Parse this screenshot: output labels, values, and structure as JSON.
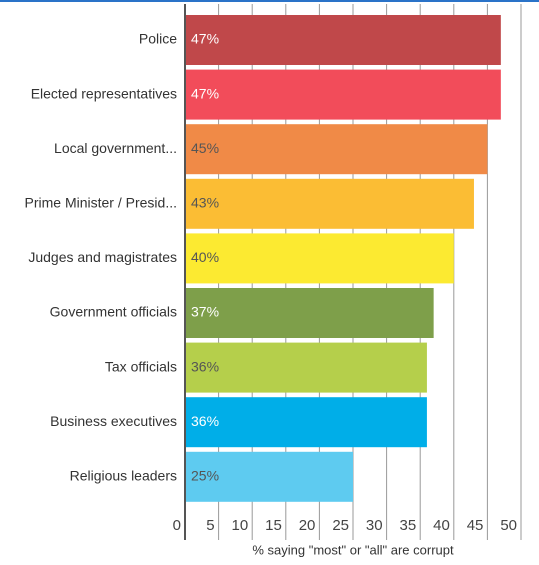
{
  "chart_data": {
    "type": "barh",
    "xlabel": "% saying \"most\" or \"all\" are corrupt",
    "categories": [
      "Police",
      "Elected representatives",
      "Local government...",
      "Prime Minister / Presid...",
      "Judges and magistrates",
      "Government officials",
      "Tax officials",
      "Business executives",
      "Religious leaders"
    ],
    "values": [
      47,
      47,
      45,
      43,
      40,
      37,
      36,
      36,
      25
    ],
    "value_labels": [
      "47%",
      "47%",
      "45%",
      "43%",
      "40%",
      "37%",
      "36%",
      "36%",
      "25%"
    ],
    "colors": [
      "#c0484a",
      "#f24c5a",
      "#f08a47",
      "#fbbd34",
      "#fcea31",
      "#7e9f4a",
      "#b5cf4b",
      "#00aee8",
      "#5ecbf0"
    ],
    "xlim": [
      0,
      50
    ],
    "xticks": [
      0,
      5,
      10,
      15,
      20,
      25,
      30,
      35,
      40,
      45,
      50
    ],
    "grid": true
  }
}
